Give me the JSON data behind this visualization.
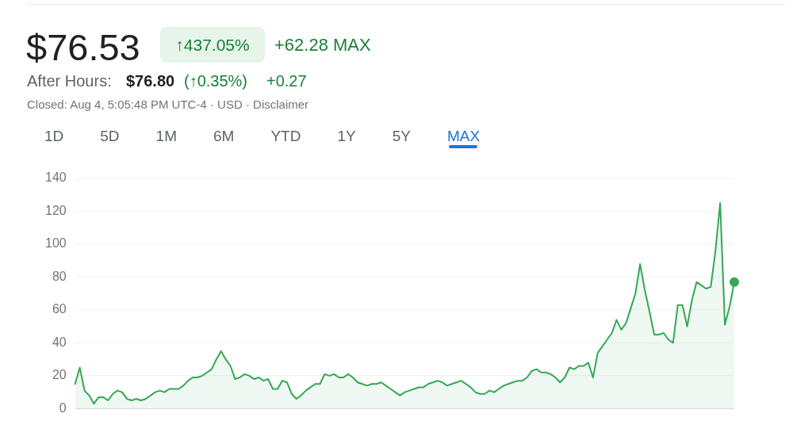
{
  "chart_data": {
    "type": "area",
    "title": "$76.53",
    "subtitle": "Closed: Aug 4, 5:05:48 PM UTC-4 · USD · Disclaimer",
    "annotations": [
      "↑437.05%",
      "+62.28 MAX",
      "After Hours:",
      "$76.80",
      "(↑0.35%)",
      "+0.27",
      "1D",
      "5D",
      "1M",
      "6M",
      "YTD",
      "1Y",
      "5Y",
      "MAX"
    ],
    "categories": [
      null,
      null,
      null,
      null,
      null,
      null,
      null,
      null,
      null,
      null,
      null,
      null,
      null,
      null,
      null,
      null,
      null,
      null,
      null,
      null,
      null,
      null,
      null,
      null,
      null,
      null,
      null,
      null,
      null,
      null,
      null,
      null,
      null,
      null,
      null,
      null,
      null,
      null,
      null,
      null,
      null,
      null,
      null,
      null,
      null,
      null,
      null,
      null,
      null,
      null,
      null,
      null,
      null,
      null,
      null,
      null,
      null,
      null,
      null,
      null,
      null,
      null,
      null,
      null,
      null,
      null,
      null,
      null,
      null,
      null,
      null,
      null,
      null,
      null,
      null,
      null,
      null,
      null,
      null,
      null,
      null,
      null,
      null,
      null,
      null,
      null,
      null,
      null,
      null,
      null,
      null,
      null,
      null,
      null,
      null,
      null,
      null,
      null,
      null,
      null,
      null,
      null,
      null,
      null,
      null,
      null,
      null,
      null,
      null,
      null,
      null,
      null,
      null,
      null,
      null,
      null,
      null,
      null,
      null,
      null,
      null,
      null,
      null,
      null,
      null,
      null,
      null,
      null,
      null,
      null,
      null,
      null,
      null,
      null,
      null,
      null,
      null,
      null,
      null,
      null,
      null
    ],
    "series": [
      {
        "color": "#34a853",
        "values": [
          15,
          25,
          11,
          8,
          3,
          7,
          7,
          5,
          9,
          11,
          10,
          6,
          5,
          6,
          5,
          6,
          8,
          10,
          11,
          10,
          12,
          12,
          12,
          14,
          17,
          19,
          19,
          20,
          22,
          24,
          30,
          35,
          30,
          26,
          18,
          19,
          21,
          20,
          18,
          19,
          17,
          18,
          12,
          12,
          17,
          16,
          9,
          6,
          8,
          11,
          13,
          15,
          15,
          21,
          20,
          21,
          19,
          19,
          21,
          19,
          16,
          15,
          14,
          15,
          15,
          16,
          14,
          12,
          10,
          8,
          10,
          11,
          12,
          13,
          13,
          15,
          16,
          17,
          16,
          14,
          15,
          16,
          17,
          15,
          13,
          10,
          9,
          9,
          11,
          10,
          12,
          14,
          15,
          16,
          17,
          17,
          19,
          23,
          24,
          22,
          22,
          21,
          19,
          16,
          19,
          25,
          24,
          26,
          26,
          28,
          19,
          34,
          38,
          42,
          46,
          54,
          48,
          52,
          61,
          70,
          88,
          72,
          59,
          45,
          45,
          46,
          42,
          40,
          63,
          63,
          50,
          66,
          77,
          75,
          73,
          74,
          96,
          125,
          51,
          62,
          77
        ]
      },
      {
        "type": "scatter",
        "marker": "circle",
        "color": "#34a853",
        "values": [
          null,
          null,
          null,
          null,
          null,
          null,
          null,
          null,
          null,
          null,
          null,
          null,
          null,
          null,
          null,
          null,
          null,
          null,
          null,
          null,
          null,
          null,
          null,
          null,
          null,
          null,
          null,
          null,
          null,
          null,
          null,
          null,
          null,
          null,
          null,
          null,
          null,
          null,
          null,
          null,
          null,
          null,
          null,
          null,
          null,
          null,
          null,
          null,
          null,
          null,
          null,
          null,
          null,
          null,
          null,
          null,
          null,
          null,
          null,
          null,
          null,
          null,
          null,
          null,
          null,
          null,
          null,
          null,
          null,
          null,
          null,
          null,
          null,
          null,
          null,
          null,
          null,
          null,
          null,
          null,
          null,
          null,
          null,
          null,
          null,
          null,
          null,
          null,
          null,
          null,
          null,
          null,
          null,
          null,
          null,
          null,
          null,
          null,
          null,
          null,
          null,
          null,
          null,
          null,
          null,
          null,
          null,
          null,
          null,
          null,
          null,
          null,
          null,
          null,
          null,
          null,
          null,
          null,
          null,
          null,
          null,
          null,
          null,
          null,
          null,
          null,
          null,
          null,
          null,
          null,
          null,
          null,
          null,
          null,
          null,
          null,
          null,
          null,
          null,
          null,
          77
        ]
      }
    ],
    "ylim": [
      0,
      140
    ],
    "yticks": [
      0,
      20,
      40,
      60,
      80,
      100,
      120,
      140
    ],
    "grid": "y",
    "tick_labels": "y"
  }
}
